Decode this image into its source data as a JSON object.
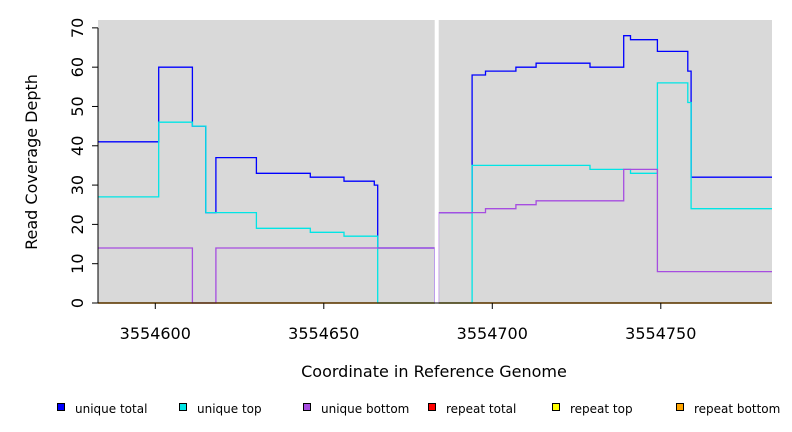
{
  "chart_data": {
    "type": "line",
    "xlabel": "Coordinate in Reference Genome",
    "ylabel": "Read Coverage Depth",
    "xlim": [
      3554583,
      3554783
    ],
    "ylim": [
      0,
      72
    ],
    "x_ticks": [
      3554600,
      3554650,
      3554700,
      3554750
    ],
    "y_ticks": [
      0,
      10,
      20,
      30,
      40,
      50,
      60,
      70
    ],
    "gap": [
      3554683,
      3554684
    ],
    "grid": false,
    "legend_position": "bottom",
    "background": "#d9d9d9",
    "series": [
      {
        "name": "unique total",
        "color": "#0000ff",
        "steps": [
          [
            3554583,
            41
          ],
          [
            3554601,
            60
          ],
          [
            3554611,
            45
          ],
          [
            3554615,
            23
          ],
          [
            3554618,
            37
          ],
          [
            3554630,
            33
          ],
          [
            3554646,
            32
          ],
          [
            3554656,
            31
          ],
          [
            3554665,
            30
          ],
          [
            3554666,
            14
          ],
          [
            3554683,
            0
          ],
          [
            3554684,
            23
          ],
          [
            3554694,
            58
          ],
          [
            3554698,
            59
          ],
          [
            3554707,
            60
          ],
          [
            3554713,
            61
          ],
          [
            3554729,
            60
          ],
          [
            3554739,
            68
          ],
          [
            3554741,
            67
          ],
          [
            3554749,
            64
          ],
          [
            3554758,
            59
          ],
          [
            3554759,
            32
          ],
          [
            3554783,
            32
          ]
        ]
      },
      {
        "name": "unique top",
        "color": "#00e5e5",
        "steps": [
          [
            3554583,
            27
          ],
          [
            3554601,
            46
          ],
          [
            3554611,
            45
          ],
          [
            3554615,
            23
          ],
          [
            3554630,
            19
          ],
          [
            3554646,
            18
          ],
          [
            3554656,
            17
          ],
          [
            3554666,
            0
          ],
          [
            3554683,
            0
          ],
          [
            3554684,
            0
          ],
          [
            3554694,
            35
          ],
          [
            3554729,
            34
          ],
          [
            3554741,
            33
          ],
          [
            3554749,
            56
          ],
          [
            3554758,
            51
          ],
          [
            3554759,
            24
          ],
          [
            3554783,
            24
          ]
        ]
      },
      {
        "name": "unique bottom",
        "color": "#a64de0",
        "steps": [
          [
            3554583,
            14
          ],
          [
            3554611,
            0
          ],
          [
            3554618,
            14
          ],
          [
            3554683,
            0
          ],
          [
            3554684,
            23
          ],
          [
            3554698,
            24
          ],
          [
            3554707,
            25
          ],
          [
            3554713,
            26
          ],
          [
            3554739,
            34
          ],
          [
            3554749,
            8
          ],
          [
            3554783,
            8
          ]
        ]
      },
      {
        "name": "repeat total",
        "color": "#ff0000",
        "steps": [
          [
            3554583,
            0
          ],
          [
            3554783,
            0
          ]
        ]
      },
      {
        "name": "repeat top",
        "color": "#ffff00",
        "steps": [
          [
            3554583,
            0
          ],
          [
            3554783,
            0
          ]
        ]
      },
      {
        "name": "repeat bottom",
        "color": "#ffa500",
        "steps": [
          [
            3554583,
            0
          ],
          [
            3554783,
            0
          ]
        ]
      }
    ]
  }
}
